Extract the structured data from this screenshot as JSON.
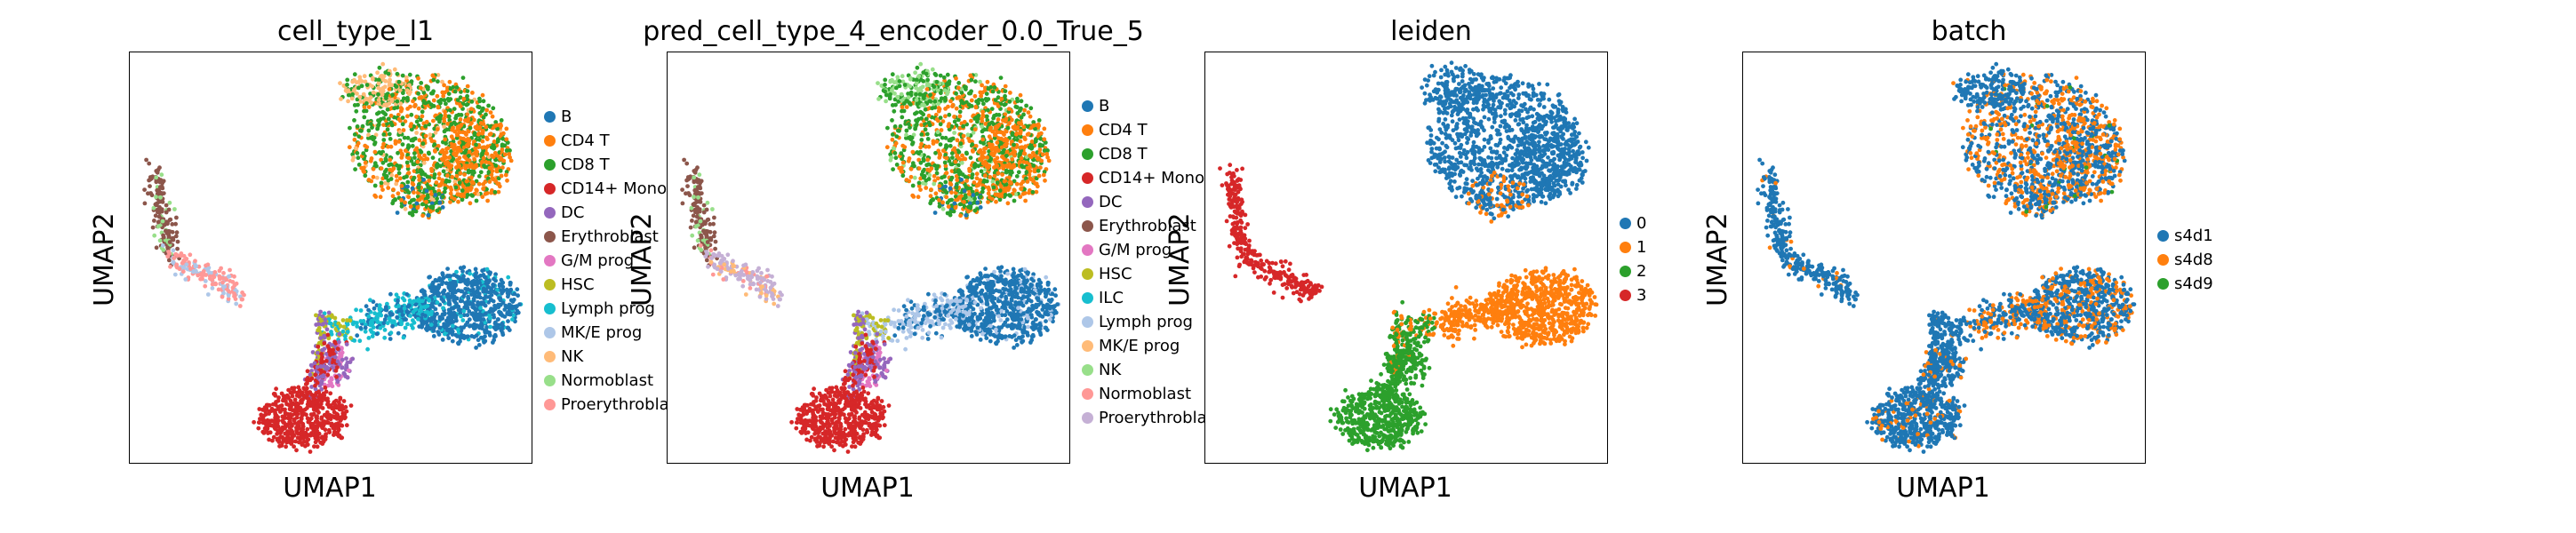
{
  "palette": {
    "blue": "#1f77b4",
    "orange": "#ff7f0e",
    "green": "#2ca02c",
    "red": "#d62728",
    "purple": "#9467bd",
    "brown": "#8c564b",
    "pink": "#e377c2",
    "olive": "#bcbd22",
    "cyan": "#17becf",
    "lightblue": "#aec7e8",
    "peach": "#ffbb78",
    "lightgreen": "#98df8a",
    "lightred": "#ff9896",
    "lavender": "#c5b0d5"
  },
  "chart_data": [
    {
      "type": "scatter",
      "title": "cell_type_l1",
      "xlabel": "UMAP1",
      "ylabel": "UMAP2",
      "axis_ticks": "hidden",
      "grid": false,
      "legend_position": "right",
      "legend": [
        {
          "label": "B",
          "color": "#1f77b4"
        },
        {
          "label": "CD4 T",
          "color": "#ff7f0e"
        },
        {
          "label": "CD8 T",
          "color": "#2ca02c"
        },
        {
          "label": "CD14+ Mono",
          "color": "#d62728"
        },
        {
          "label": "DC",
          "color": "#9467bd"
        },
        {
          "label": "Erythroblast",
          "color": "#8c564b"
        },
        {
          "label": "G/M prog",
          "color": "#e377c2"
        },
        {
          "label": "HSC",
          "color": "#bcbd22"
        },
        {
          "label": "Lymph prog",
          "color": "#17becf"
        },
        {
          "label": "MK/E prog",
          "color": "#aec7e8"
        },
        {
          "label": "NK",
          "color": "#ffbb78"
        },
        {
          "label": "Normoblast",
          "color": "#98df8a"
        },
        {
          "label": "Proerythroblast",
          "color": "#ff9896"
        }
      ],
      "scheme": "celltype"
    },
    {
      "type": "scatter",
      "title": "pred_cell_type_4_encoder_0.0_True_5",
      "xlabel": "UMAP1",
      "ylabel": "UMAP2",
      "axis_ticks": "hidden",
      "grid": false,
      "legend_position": "right",
      "legend": [
        {
          "label": "B",
          "color": "#1f77b4"
        },
        {
          "label": "CD4 T",
          "color": "#ff7f0e"
        },
        {
          "label": "CD8 T",
          "color": "#2ca02c"
        },
        {
          "label": "CD14+ Mono",
          "color": "#d62728"
        },
        {
          "label": "DC",
          "color": "#9467bd"
        },
        {
          "label": "Erythroblast",
          "color": "#8c564b"
        },
        {
          "label": "G/M prog",
          "color": "#e377c2"
        },
        {
          "label": "HSC",
          "color": "#bcbd22"
        },
        {
          "label": "ILC",
          "color": "#17becf"
        },
        {
          "label": "Lymph prog",
          "color": "#aec7e8"
        },
        {
          "label": "MK/E prog",
          "color": "#ffbb78"
        },
        {
          "label": "NK",
          "color": "#98df8a"
        },
        {
          "label": "Normoblast",
          "color": "#ff9896"
        },
        {
          "label": "Proerythroblast",
          "color": "#c5b0d5"
        }
      ],
      "scheme": "predicted"
    },
    {
      "type": "scatter",
      "title": "leiden",
      "xlabel": "UMAP1",
      "ylabel": "UMAP2",
      "axis_ticks": "hidden",
      "grid": false,
      "legend_position": "right",
      "legend": [
        {
          "label": "0",
          "color": "#1f77b4"
        },
        {
          "label": "1",
          "color": "#ff7f0e"
        },
        {
          "label": "2",
          "color": "#2ca02c"
        },
        {
          "label": "3",
          "color": "#d62728"
        }
      ],
      "scheme": "leiden"
    },
    {
      "type": "scatter",
      "title": "batch",
      "xlabel": "UMAP1",
      "ylabel": "UMAP2",
      "axis_ticks": "hidden",
      "grid": false,
      "legend_position": "right",
      "legend": [
        {
          "label": "s4d1",
          "color": "#1f77b4"
        },
        {
          "label": "s4d8",
          "color": "#ff7f0e"
        },
        {
          "label": "s4d9",
          "color": "#2ca02c"
        }
      ],
      "scheme": "batch"
    }
  ]
}
